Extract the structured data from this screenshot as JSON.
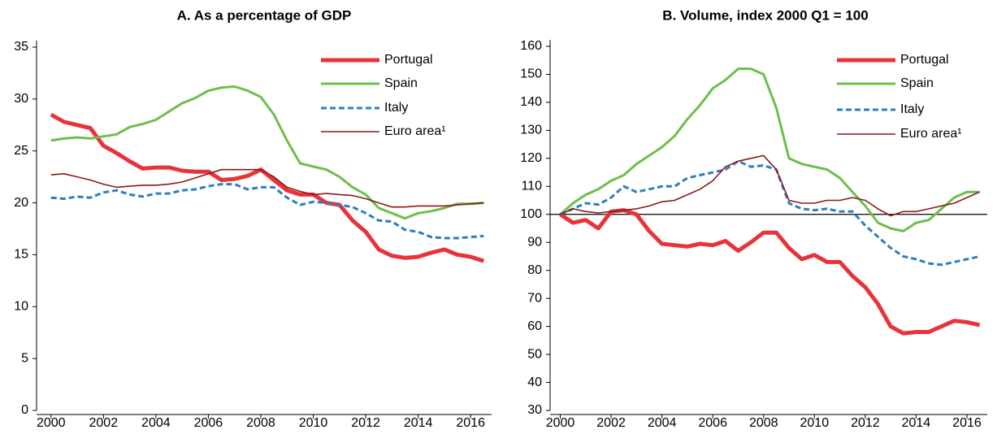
{
  "chart_data": [
    {
      "type": "line",
      "title": "A. As a percentage of GDP",
      "x": [
        2000,
        2000.5,
        2001,
        2001.5,
        2002,
        2002.5,
        2003,
        2003.5,
        2004,
        2004.5,
        2005,
        2005.5,
        2006,
        2006.5,
        2007,
        2007.5,
        2008,
        2008.5,
        2009,
        2009.5,
        2010,
        2010.5,
        2011,
        2011.5,
        2012,
        2012.5,
        2013,
        2013.5,
        2014,
        2014.5,
        2015,
        2015.5,
        2016,
        2016.5
      ],
      "xlim": [
        1999.45,
        2016.8
      ],
      "xticks": [
        2000,
        2002,
        2004,
        2006,
        2008,
        2010,
        2012,
        2014,
        2016
      ],
      "ylim": [
        0,
        35
      ],
      "yticks": [
        0,
        5,
        10,
        15,
        20,
        25,
        30,
        35
      ],
      "series": [
        {
          "name": "Portugal",
          "color": "#e8333a",
          "values": [
            28.5,
            27.8,
            27.5,
            27.2,
            25.5,
            24.8,
            24,
            23.3,
            23.4,
            23.4,
            23.1,
            23,
            23,
            22.2,
            22.3,
            22.6,
            23.2,
            22.2,
            21.2,
            20.8,
            20.8,
            20,
            19.8,
            18.3,
            17.2,
            15.5,
            14.9,
            14.7,
            14.8,
            15.2,
            15.5,
            15,
            14.8,
            14.4
          ]
        },
        {
          "name": "Spain",
          "color": "#6cc04a",
          "values": [
            26,
            26.2,
            26.3,
            26.2,
            26.4,
            26.6,
            27.3,
            27.6,
            28,
            28.8,
            29.6,
            30.1,
            30.8,
            31.1,
            31.2,
            30.8,
            30.2,
            28.5,
            26,
            23.8,
            23.5,
            23.2,
            22.5,
            21.5,
            20.8,
            19.5,
            19,
            18.5,
            19,
            19.2,
            19.5,
            19.9,
            19.9,
            20
          ]
        },
        {
          "name": "Italy",
          "color": "#2a7fc1",
          "values": [
            20.5,
            20.4,
            20.6,
            20.5,
            21,
            21.2,
            20.8,
            20.6,
            20.9,
            20.9,
            21.2,
            21.3,
            21.6,
            21.8,
            21.8,
            21.3,
            21.5,
            21.5,
            20.5,
            19.8,
            20.1,
            20,
            19.8,
            19.6,
            19,
            18.3,
            18.2,
            17.4,
            17.2,
            16.7,
            16.6,
            16.6,
            16.7,
            16.8
          ]
        },
        {
          "name": "Euro area¹",
          "color": "#8b1a1a",
          "values": [
            22.7,
            22.8,
            22.5,
            22.2,
            21.8,
            21.5,
            21.6,
            21.7,
            21.7,
            21.8,
            22,
            22.4,
            22.8,
            23.2,
            23.2,
            23.2,
            23.2,
            22.5,
            21.5,
            21.1,
            20.8,
            20.9,
            20.8,
            20.7,
            20.4,
            20,
            19.6,
            19.6,
            19.7,
            19.7,
            19.7,
            19.8,
            19.9,
            20
          ]
        }
      ]
    },
    {
      "type": "line",
      "title": "B. Volume, index 2000 Q1 = 100",
      "x": [
        2000,
        2000.5,
        2001,
        2001.5,
        2002,
        2002.5,
        2003,
        2003.5,
        2004,
        2004.5,
        2005,
        2005.5,
        2006,
        2006.5,
        2007,
        2007.5,
        2008,
        2008.5,
        2009,
        2009.5,
        2010,
        2010.5,
        2011,
        2011.5,
        2012,
        2012.5,
        2013,
        2013.5,
        2014,
        2014.5,
        2015,
        2015.5,
        2016,
        2016.5
      ],
      "xlim": [
        1999.6,
        2016.8
      ],
      "xticks": [
        2000,
        2002,
        2004,
        2006,
        2008,
        2010,
        2012,
        2014,
        2016
      ],
      "ylim": [
        30,
        160
      ],
      "yticks": [
        30,
        40,
        50,
        60,
        70,
        80,
        90,
        100,
        110,
        120,
        130,
        140,
        150,
        160
      ],
      "hline": 100,
      "series": [
        {
          "name": "Portugal",
          "color": "#e8333a",
          "values": [
            100,
            97,
            98,
            95,
            101,
            101.5,
            100,
            94,
            89.5,
            89,
            88.5,
            89.5,
            89,
            90.5,
            87,
            90,
            93.5,
            93.5,
            88,
            84,
            85.5,
            83,
            83,
            78,
            74,
            68,
            60,
            57.5,
            58,
            58,
            60,
            62,
            61.5,
            60.5
          ]
        },
        {
          "name": "Spain",
          "color": "#6cc04a",
          "values": [
            100,
            104,
            107,
            109,
            112,
            114,
            118,
            121,
            124,
            128,
            134,
            139,
            145,
            148,
            152,
            152,
            150,
            138,
            120,
            118,
            117,
            116,
            113,
            108,
            103,
            97,
            95,
            94,
            97,
            98,
            102,
            106,
            108,
            108
          ]
        },
        {
          "name": "Italy",
          "color": "#2a7fc1",
          "values": [
            100,
            102,
            104,
            103.5,
            106,
            110,
            108,
            109,
            110,
            110,
            113,
            114,
            115,
            116,
            119,
            117,
            117.5,
            116,
            104,
            102,
            101.5,
            102,
            101,
            101,
            96,
            92,
            88,
            85,
            84,
            82.5,
            82,
            83,
            84,
            85
          ]
        },
        {
          "name": "Euro area¹",
          "color": "#8b1a1a",
          "values": [
            100,
            102,
            101,
            100.5,
            101,
            101.5,
            102,
            103,
            104.5,
            105,
            107,
            109,
            112,
            117,
            119,
            120,
            121,
            116,
            105,
            104,
            104,
            105,
            105,
            106,
            105,
            102,
            99.5,
            101,
            101,
            102,
            103,
            104,
            106,
            108
          ]
        }
      ]
    }
  ]
}
